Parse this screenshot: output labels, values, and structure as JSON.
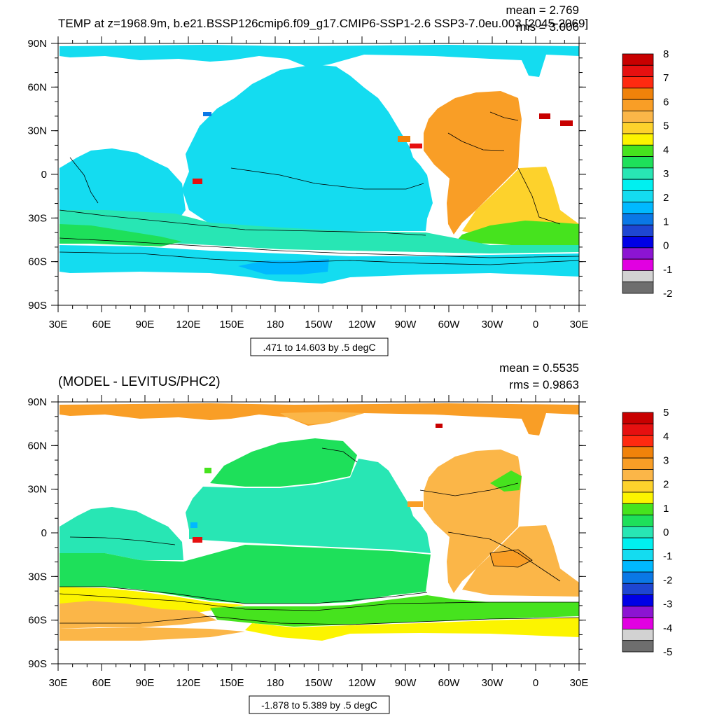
{
  "panels": [
    {
      "title": "TEMP at z=1968.9m, b.e21.BSSP126cmip6.f09_g17.CMIP6-SSP1-2.6 SSP3-7.0eu.003 [2045-2069]",
      "mean_label": "mean = 2.769",
      "rms_label": "rms = 3.006",
      "contour_info": ".471 to 14.603 by .5 degC",
      "colorbar": {
        "labels": [
          "8",
          "7",
          "6",
          "5",
          "4",
          "3",
          "2",
          "1",
          "0",
          "-1",
          "-2"
        ],
        "colors": [
          "#c80000",
          "#e61010",
          "#ff2a10",
          "#f0820a",
          "#f99e26",
          "#fbb648",
          "#fdd22c",
          "#fcf400",
          "#46e31e",
          "#1ee05a",
          "#28e6b4",
          "#00f0f0",
          "#14dcf0",
          "#00b9ff",
          "#0a78e6",
          "#1e46d2",
          "#0000e6",
          "#8c14d2",
          "#e100e1",
          "#d2d2d2",
          "#6e6e6e"
        ]
      }
    },
    {
      "title": "(MODEL - LEVITUS/PHC2)",
      "mean_label": "mean = 0.5535",
      "rms_label": "rms = 0.9863",
      "contour_info": "-1.878 to 5.389 by .5 degC",
      "colorbar": {
        "labels": [
          "5",
          "4",
          "3",
          "2",
          "1",
          "0",
          "-1",
          "-2",
          "-3",
          "-4",
          "-5"
        ],
        "colors": [
          "#c80000",
          "#e61010",
          "#ff2a10",
          "#f0820a",
          "#f99e26",
          "#fbb648",
          "#fdd22c",
          "#fcf400",
          "#46e31e",
          "#1ee05a",
          "#28e6b4",
          "#00f0f0",
          "#14dcf0",
          "#00b9ff",
          "#0a78e6",
          "#1e46d2",
          "#0000e6",
          "#8c14d2",
          "#e100e1",
          "#d2d2d2",
          "#6e6e6e"
        ]
      }
    }
  ],
  "axes": {
    "lat_labels": [
      "90N",
      "60N",
      "30N",
      "0",
      "30S",
      "60S",
      "90S"
    ],
    "lon_labels": [
      "30E",
      "60E",
      "90E",
      "120E",
      "150E",
      "180",
      "150W",
      "120W",
      "90W",
      "60W",
      "30W",
      "0",
      "30E"
    ]
  },
  "field_colors": {
    "p1_cyan": "#14dcf0",
    "p1_teal": "#28e6b4",
    "p1_green": "#1ee05a",
    "p1_orange": "#f99e26",
    "p1_yellow": "#fdd22c",
    "p1_green2": "#46e31e",
    "p1_red": "#e61010",
    "p2_orange": "#f99e26",
    "p2_yellowor": "#fbb648",
    "p2_green": "#1ee05a",
    "p2_teal": "#28e6b4",
    "p2_yellow": "#fcf400",
    "p2_lime": "#46e31e",
    "p2_red": "#e61010"
  }
}
